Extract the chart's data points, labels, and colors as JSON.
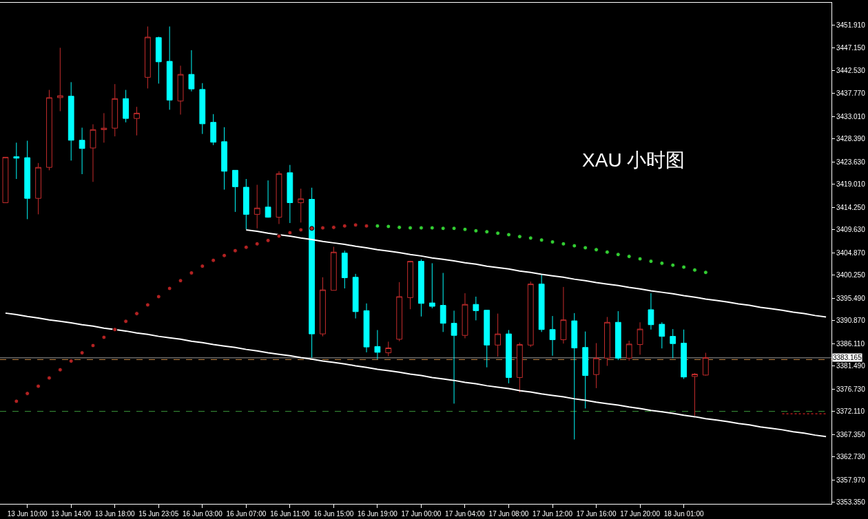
{
  "chart_data": {
    "type": "candlestick",
    "title": "XAU 小时图",
    "categories": [
      null,
      null,
      "13 Jun 10:00",
      null,
      null,
      null,
      "13 Jun 14:00",
      null,
      null,
      null,
      "13 Jun 18:00",
      null,
      null,
      null,
      "15 Jun 23:05",
      null,
      null,
      null,
      "16 Jun 03:00",
      null,
      null,
      null,
      "16 Jun 07:00",
      null,
      null,
      null,
      "16 Jun 11:00",
      null,
      null,
      null,
      "16 Jun 15:00",
      null,
      null,
      null,
      "16 Jun 19:00",
      null,
      null,
      null,
      "17 Jun 00:00",
      null,
      null,
      null,
      "17 Jun 04:00",
      null,
      null,
      null,
      "17 Jun 08:00",
      null,
      null,
      null,
      "17 Jun 12:00",
      null,
      null,
      null,
      "17 Jun 16:00",
      null,
      null,
      null,
      "17 Jun 20:00",
      null,
      null,
      null,
      "18 Jun 01:00",
      null,
      null,
      null,
      null,
      null,
      null,
      null,
      null,
      null,
      null,
      null,
      null,
      null
    ],
    "ohlc": [
      [
        3415.2,
        3424.6,
        3415.2,
        3424.6
      ],
      [
        3424.7,
        3427.6,
        3420.1,
        3424.4
      ],
      [
        3424.5,
        3428.0,
        3411.8,
        3416.1
      ],
      [
        3416.1,
        3423.4,
        3412.8,
        3422.5
      ],
      [
        3422.5,
        3438.5,
        3421.9,
        3436.9
      ],
      [
        3436.9,
        3447.2,
        3434.1,
        3437.3
      ],
      [
        3437.2,
        3440.1,
        3423.9,
        3428.1
      ],
      [
        3428.1,
        3430.7,
        3421.1,
        3426.4
      ],
      [
        3426.5,
        3431.4,
        3419.5,
        3430.3
      ],
      [
        3430.3,
        3433.7,
        3427.6,
        3430.6
      ],
      [
        3430.6,
        3439.7,
        3428.9,
        3436.7
      ],
      [
        3436.7,
        3438.5,
        3431.8,
        3432.6
      ],
      [
        3432.6,
        3435.0,
        3429.1,
        3433.7
      ],
      [
        3441.1,
        3451.6,
        3438.8,
        3449.4
      ],
      [
        3449.3,
        3449.5,
        3439.8,
        3444.3
      ],
      [
        3444.4,
        3451.6,
        3434.4,
        3436.4
      ],
      [
        3436.2,
        3443.5,
        3433.4,
        3441.7
      ],
      [
        3441.7,
        3446.7,
        3438.2,
        3438.7
      ],
      [
        3438.6,
        3439.9,
        3429.4,
        3431.5
      ],
      [
        3431.8,
        3433.5,
        3427.1,
        3427.7
      ],
      [
        3427.8,
        3430.8,
        3417.9,
        3421.7
      ],
      [
        3421.9,
        3421.9,
        3413.3,
        3418.5
      ],
      [
        3418.4,
        3420.1,
        3409.7,
        3412.8
      ],
      [
        3412.8,
        3418.9,
        3409.9,
        3414.1
      ],
      [
        3414.3,
        3419.8,
        3412.1,
        3412.2
      ],
      [
        3412.2,
        3421.7,
        3410.8,
        3421.2
      ],
      [
        3421.4,
        3423.0,
        3411.0,
        3415.2
      ],
      [
        3415.2,
        3418.1,
        3411.1,
        3416.0
      ],
      [
        3415.9,
        3418.3,
        3383.2,
        3388.1
      ],
      [
        3388.1,
        3399.8,
        3387.6,
        3397.2
      ],
      [
        3397.1,
        3406.1,
        3397.1,
        3405.0
      ],
      [
        3404.8,
        3405.3,
        3397.5,
        3399.7
      ],
      [
        3399.8,
        3400.5,
        3391.3,
        3392.7
      ],
      [
        3392.9,
        3394.4,
        3384.3,
        3385.4
      ],
      [
        3385.5,
        3388.9,
        3382.9,
        3384.3
      ],
      [
        3384.2,
        3386.5,
        3383.5,
        3385.2
      ],
      [
        3387.0,
        3398.8,
        3386.6,
        3395.8
      ],
      [
        3395.6,
        3403.2,
        3393.2,
        3403.1
      ],
      [
        3403.1,
        3403.5,
        3391.7,
        3394.4
      ],
      [
        3394.5,
        3402.7,
        3393.4,
        3393.8
      ],
      [
        3394.0,
        3400.7,
        3388.5,
        3390.3
      ],
      [
        3390.3,
        3392.9,
        3373.7,
        3387.8
      ],
      [
        3387.8,
        3396.5,
        3387.2,
        3394.2
      ],
      [
        3394.2,
        3395.8,
        3390.9,
        3392.9
      ],
      [
        3393.0,
        3393.0,
        3381.2,
        3385.8
      ],
      [
        3385.8,
        3392.3,
        3383.4,
        3388.1
      ],
      [
        3388.1,
        3388.9,
        3377.9,
        3379.1
      ],
      [
        3379.1,
        3386.3,
        3376.0,
        3385.9
      ],
      [
        3385.8,
        3398.9,
        3385.4,
        3398.4
      ],
      [
        3398.4,
        3400.4,
        3388.5,
        3389.0
      ],
      [
        3389.0,
        3391.8,
        3383.6,
        3386.9
      ],
      [
        3386.9,
        3397.8,
        3386.1,
        3391.0
      ],
      [
        3390.8,
        3392.4,
        3366.3,
        3385.2
      ],
      [
        3385.3,
        3388.6,
        3372.7,
        3379.5
      ],
      [
        3379.7,
        3386.2,
        3376.9,
        3383.1
      ],
      [
        3383.1,
        3391.6,
        3381.5,
        3390.5
      ],
      [
        3390.5,
        3392.8,
        3382.7,
        3383.1
      ],
      [
        3383.1,
        3386.7,
        3382.6,
        3386.0
      ],
      [
        3385.9,
        3390.5,
        3383.8,
        3389.1
      ],
      [
        3393.1,
        3396.5,
        3389.0,
        3390.0
      ],
      [
        3390.1,
        3390.5,
        3385.1,
        3387.6
      ],
      [
        3387.6,
        3389.1,
        3383.1,
        3386.1
      ],
      [
        3386.2,
        3389.0,
        3378.8,
        3379.2
      ],
      [
        3379.3,
        3380.0,
        3371.2,
        3379.8
      ],
      [
        3379.6,
        3384.2,
        3379.5,
        3383.2
      ],
      null,
      null,
      null,
      null,
      null,
      null,
      null,
      null,
      null,
      null,
      null
    ],
    "colors": [
      "#c62d2d",
      "#00ffff",
      "#00ffff",
      "#c62d2d",
      "#c62d2d",
      "#c62d2d",
      "#00ffff",
      "#00ffff",
      "#c62d2d",
      "#c62d2d",
      "#c62d2d",
      "#00ffff",
      "#c62d2d",
      "#c62d2d",
      "#00ffff",
      "#00ffff",
      "#c62d2d",
      "#00ffff",
      "#00ffff",
      "#00ffff",
      "#00ffff",
      "#00ffff",
      "#00ffff",
      "#c62d2d",
      "#00ffff",
      "#c62d2d",
      "#00ffff",
      "#c62d2d",
      "#00ffff",
      "#c62d2d",
      "#c62d2d",
      "#00ffff",
      "#00ffff",
      "#00ffff",
      "#00ffff",
      "#c62d2d",
      "#c62d2d",
      "#c62d2d",
      "#00ffff",
      "#00ffff",
      "#00ffff",
      "#00ffff",
      "#c62d2d",
      "#00ffff",
      "#00ffff",
      "#c62d2d",
      "#00ffff",
      "#c62d2d",
      "#c62d2d",
      "#00ffff",
      "#00ffff",
      "#c62d2d",
      "#00ffff",
      "#00ffff",
      "#c62d2d",
      "#c62d2d",
      "#00ffff",
      "#c62d2d",
      "#c62d2d",
      "#00ffff",
      "#00ffff",
      "#00ffff",
      "#00ffff",
      "#c62d2d",
      "#c62d2d",
      null,
      null,
      null,
      null,
      null,
      null,
      null,
      null,
      null,
      null,
      null
    ],
    "ylim": [
      3353.0,
      3456.5
    ],
    "yticks": [
      {
        "value": 3451.91,
        "label": "3451.910"
      },
      {
        "value": 3447.15,
        "label": "3447.150"
      },
      {
        "value": 3442.53,
        "label": "3442.530"
      },
      {
        "value": 3437.77,
        "label": "3437.770"
      },
      {
        "value": 3433.01,
        "label": "3433.010"
      },
      {
        "value": 3428.39,
        "label": "3428.390"
      },
      {
        "value": 3423.63,
        "label": "3423.630"
      },
      {
        "value": 3419.01,
        "label": "3419.010"
      },
      {
        "value": 3414.25,
        "label": "3414.250"
      },
      {
        "value": 3409.63,
        "label": "3409.630"
      },
      {
        "value": 3404.87,
        "label": "3404.870"
      },
      {
        "value": 3400.25,
        "label": "3400.250"
      },
      {
        "value": 3395.49,
        "label": "3395.490"
      },
      {
        "value": 3390.87,
        "label": "3390.870"
      },
      {
        "value": 3386.11,
        "label": "3386.110"
      },
      {
        "value": 3381.49,
        "label": "3381.490"
      },
      {
        "value": 3376.73,
        "label": "3376.730"
      },
      {
        "value": 3372.11,
        "label": "3372.110"
      },
      {
        "value": 3367.35,
        "label": "3367.350"
      },
      {
        "value": 3362.73,
        "label": "3362.730"
      },
      {
        "value": 3357.97,
        "label": "3357.970"
      },
      {
        "value": 3353.35,
        "label": "3353.350"
      }
    ],
    "series": [
      {
        "type": "scatter",
        "color": "#b22222",
        "marker": "circle",
        "values": [
          null,
          3374.2,
          3375.8,
          3377.3,
          3379.0,
          3380.7,
          3382.5,
          3384.2,
          3385.7,
          3387.4,
          3389.0,
          3390.7,
          3392.3,
          3394.1,
          3395.8,
          3397.5,
          3399.1,
          3400.7,
          3402.1,
          3403.3,
          3404.3,
          3405.3,
          3406.0,
          3406.7,
          3407.4,
          3408.3,
          3409.0,
          3409.6,
          3409.9,
          3410.0,
          3410.1,
          3410.4,
          3410.6,
          3410.4,
          null,
          null,
          null,
          null,
          null,
          null,
          null,
          null,
          null,
          null,
          null,
          null,
          null,
          null,
          null,
          null,
          null,
          null,
          null,
          null,
          null,
          null,
          null,
          null,
          null,
          null,
          null,
          null,
          null,
          null,
          null,
          null,
          null,
          null,
          null,
          null,
          null,
          null,
          null,
          null,
          null,
          null
        ]
      },
      {
        "type": "scatter",
        "color": "#32cd32",
        "marker": "circle",
        "values": [
          null,
          null,
          null,
          null,
          null,
          null,
          null,
          null,
          null,
          null,
          null,
          null,
          null,
          null,
          null,
          null,
          null,
          null,
          null,
          null,
          null,
          null,
          null,
          null,
          null,
          null,
          null,
          null,
          null,
          null,
          null,
          null,
          null,
          null,
          3410.4,
          3410.3,
          3410.1,
          3410.0,
          3410.0,
          3410.0,
          3409.9,
          3409.9,
          3409.7,
          3409.4,
          3409.2,
          3408.9,
          3408.6,
          3408.2,
          3407.9,
          3407.5,
          3407.1,
          3406.7,
          3406.3,
          3405.9,
          3405.5,
          3405.0,
          3404.5,
          3404.1,
          3403.6,
          3403.1,
          3402.7,
          3402.3,
          3401.9,
          3401.3,
          3400.8,
          null,
          null,
          null,
          null,
          null,
          null,
          null,
          null,
          null,
          null,
          null
        ]
      },
      {
        "type": "line",
        "color": "#ffffff",
        "line_style": "solid",
        "values": [
          null,
          null,
          null,
          null,
          null,
          null,
          null,
          null,
          null,
          null,
          null,
          null,
          null,
          null,
          null,
          null,
          null,
          null,
          null,
          null,
          null,
          null,
          3409.6,
          3409.3,
          3408.9,
          3408.6,
          3408.3,
          3407.9,
          3407.6,
          3407.2,
          3406.9,
          3406.6,
          3406.2,
          3405.9,
          3405.5,
          3405.2,
          3404.9,
          3404.5,
          3404.2,
          3403.8,
          3403.5,
          3403.2,
          3402.8,
          3402.5,
          3402.1,
          3401.8,
          3401.5,
          3401.1,
          3400.8,
          3400.4,
          3400.1,
          3399.8,
          3399.4,
          3399.1,
          3398.7,
          3398.4,
          3398.1,
          3397.7,
          3397.4,
          3397.0,
          3396.7,
          3396.4,
          3396.0,
          3395.7,
          3395.3,
          3395.0,
          3394.7,
          3394.3,
          3394.0,
          3393.6,
          3393.3,
          3393.0,
          3392.6,
          3392.3,
          3391.9,
          3391.6
        ]
      },
      {
        "type": "line",
        "color": "#ffffff",
        "line_style": "solid",
        "values": [
          3392.4,
          3392.1,
          3391.7,
          3391.4,
          3391.0,
          3390.7,
          3390.4,
          3390.0,
          3389.7,
          3389.3,
          3389.0,
          3388.7,
          3388.3,
          3388.0,
          3387.6,
          3387.3,
          3387.0,
          3386.6,
          3386.3,
          3385.9,
          3385.6,
          3385.3,
          3384.9,
          3384.6,
          3384.2,
          3383.9,
          3383.6,
          3383.2,
          3382.9,
          3382.5,
          3382.2,
          3381.9,
          3381.5,
          3381.2,
          3380.8,
          3380.5,
          3380.2,
          3379.8,
          3379.5,
          3379.1,
          3378.8,
          3378.5,
          3378.1,
          3377.8,
          3377.4,
          3377.1,
          3376.8,
          3376.4,
          3376.1,
          3375.7,
          3375.4,
          3375.1,
          3374.7,
          3374.4,
          3374.0,
          3373.7,
          3373.4,
          3373.0,
          3372.7,
          3372.3,
          3372.0,
          3371.7,
          3371.3,
          3371.0,
          3370.6,
          3370.3,
          3370.0,
          3369.6,
          3369.3,
          3368.9,
          3368.6,
          3368.3,
          3367.9,
          3367.6,
          3367.2,
          3366.9
        ]
      },
      {
        "type": "line",
        "color": "#d02020",
        "line_style": "dotted",
        "values": [
          null,
          null,
          null,
          null,
          null,
          null,
          null,
          null,
          null,
          null,
          null,
          null,
          null,
          null,
          null,
          null,
          null,
          null,
          null,
          null,
          null,
          null,
          null,
          null,
          null,
          null,
          null,
          null,
          null,
          null,
          null,
          null,
          null,
          null,
          null,
          null,
          null,
          null,
          null,
          null,
          null,
          null,
          null,
          null,
          null,
          null,
          null,
          null,
          null,
          null,
          null,
          null,
          null,
          null,
          null,
          null,
          null,
          null,
          null,
          null,
          null,
          null,
          null,
          null,
          null,
          null,
          null,
          null,
          null,
          null,
          null,
          3371.6,
          3371.6,
          3371.6,
          3371.6,
          3371.6
        ]
      }
    ],
    "ref_lines": [
      {
        "axis": "y",
        "value": 3383.165,
        "label": "3383.165",
        "color": "#9a9a9a",
        "line_style": "solid"
      },
      {
        "axis": "y",
        "value": 3382.8,
        "color": "#c88a46",
        "line_style": "dashed"
      },
      {
        "axis": "y",
        "value": 3372.1,
        "color": "#3c9a3c",
        "line_style": "dashed"
      }
    ]
  }
}
